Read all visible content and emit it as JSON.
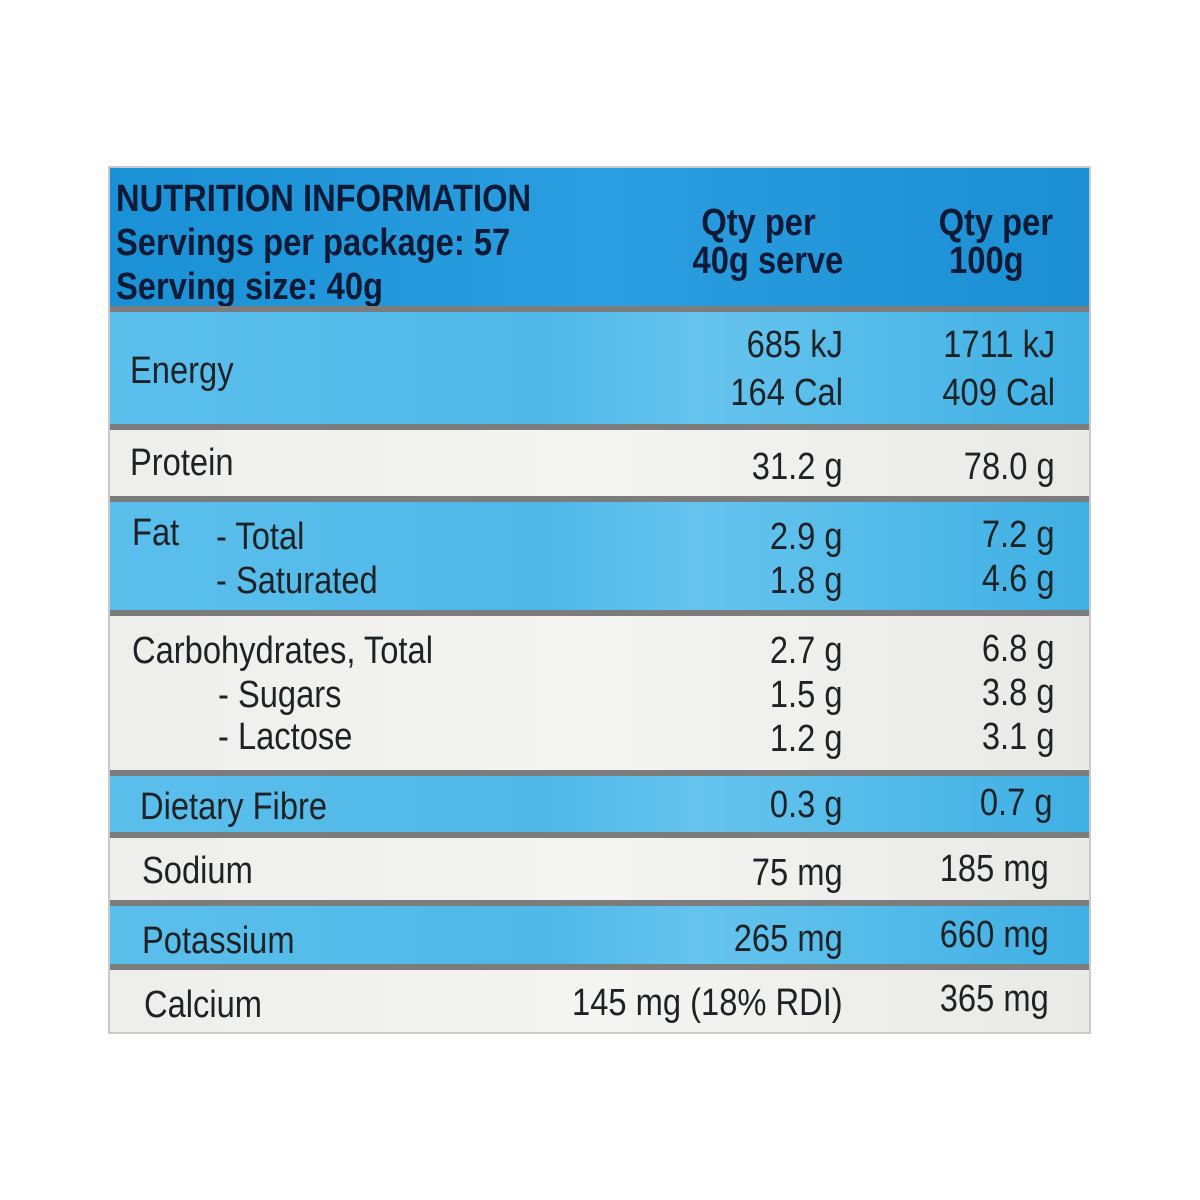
{
  "header": {
    "title": "NUTRITION INFORMATION",
    "servings": "Servings per package: 57",
    "serving_size": "Serving size: 40g",
    "col1_line1": "Qty per",
    "col1_line2": "40g serve",
    "col2_line1": "Qty per",
    "col2_line2": "100g"
  },
  "rows": {
    "energy": {
      "label": "Energy",
      "serve_kj": "685 kJ",
      "serve_cal": "164 Cal",
      "per100_kj": "1711 kJ",
      "per100_cal": "409 Cal"
    },
    "protein": {
      "label": "Protein",
      "serve": "31.2 g",
      "per100": "78.0 g"
    },
    "fat": {
      "label": "Fat",
      "total_label": "- Total",
      "saturated_label": "- Saturated",
      "total_serve": "2.9 g",
      "total_per100": "7.2 g",
      "saturated_serve": "1.8 g",
      "saturated_per100": "4.6 g"
    },
    "carbs": {
      "label": "Carbohydrates, Total",
      "sugars_label": "- Sugars",
      "lactose_label": "- Lactose",
      "total_serve": "2.7 g",
      "total_per100": "6.8 g",
      "sugars_serve": "1.5 g",
      "sugars_per100": "3.8 g",
      "lactose_serve": "1.2 g",
      "lactose_per100": "3.1 g"
    },
    "fibre": {
      "label": "Dietary Fibre",
      "serve": "0.3 g",
      "per100": "0.7 g"
    },
    "sodium": {
      "label": "Sodium",
      "serve": "75 mg",
      "per100": "185 mg"
    },
    "potassium": {
      "label": "Potassium",
      "serve": "265 mg",
      "per100": "660 mg"
    },
    "calcium": {
      "label": "Calcium",
      "serve": "145 mg (18% RDI)",
      "per100": "365 mg"
    }
  }
}
